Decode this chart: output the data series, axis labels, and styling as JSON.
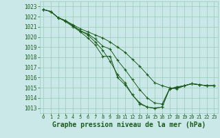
{
  "background_color": "#cbe8e8",
  "grid_color": "#99ccbb",
  "line_color": "#1a5c1a",
  "xlabel": "Graphe pression niveau de la mer (hPa)",
  "xlabel_fontsize": 7,
  "ylim": [
    1012.5,
    1023.5
  ],
  "xlim": [
    -0.5,
    23.5
  ],
  "yticks": [
    1013,
    1014,
    1015,
    1016,
    1017,
    1018,
    1019,
    1020,
    1021,
    1022,
    1023
  ],
  "xticks": [
    0,
    1,
    2,
    3,
    4,
    5,
    6,
    7,
    8,
    9,
    10,
    11,
    12,
    13,
    14,
    15,
    16,
    17,
    18,
    19,
    20,
    21,
    22,
    23
  ],
  "series": [
    [
      1022.7,
      1022.5,
      1021.9,
      1021.6,
      1021.1,
      1020.6,
      1020.2,
      1019.5,
      1018.7,
      1017.6,
      1016.3,
      1015.5,
      1014.3,
      1013.4,
      1013.1,
      1013.0,
      1013.1,
      1014.9,
      1015.0,
      1015.2,
      1015.4,
      1015.3,
      1015.2,
      1015.2
    ],
    [
      1022.7,
      1022.5,
      1021.9,
      1021.6,
      1021.1,
      1020.6,
      1020.3,
      1019.8,
      1019.1,
      1018.8,
      1017.7,
      1016.8,
      1015.8,
      1014.8,
      1014.0,
      1013.5,
      1013.4,
      1014.9,
      1015.1,
      1015.2,
      1015.4,
      1015.3,
      1015.2,
      1015.2
    ],
    [
      1022.7,
      1022.5,
      1021.9,
      1021.6,
      1021.2,
      1020.8,
      1020.5,
      1020.2,
      1019.9,
      1019.5,
      1019.0,
      1018.5,
      1017.8,
      1017.1,
      1016.3,
      1015.5,
      1015.2,
      1015.0,
      1014.9,
      1015.2,
      1015.4,
      1015.3,
      1015.2,
      1015.2
    ],
    [
      1022.7,
      1022.5,
      1021.9,
      1021.5,
      1021.0,
      1020.5,
      1019.9,
      1019.2,
      1018.1,
      1018.1,
      1016.0,
      1015.3,
      1014.3,
      1013.5,
      1013.1,
      1013.0,
      1013.1,
      1014.9,
      1015.0,
      1015.2,
      1015.4,
      1015.3,
      1015.2,
      1015.2
    ]
  ]
}
